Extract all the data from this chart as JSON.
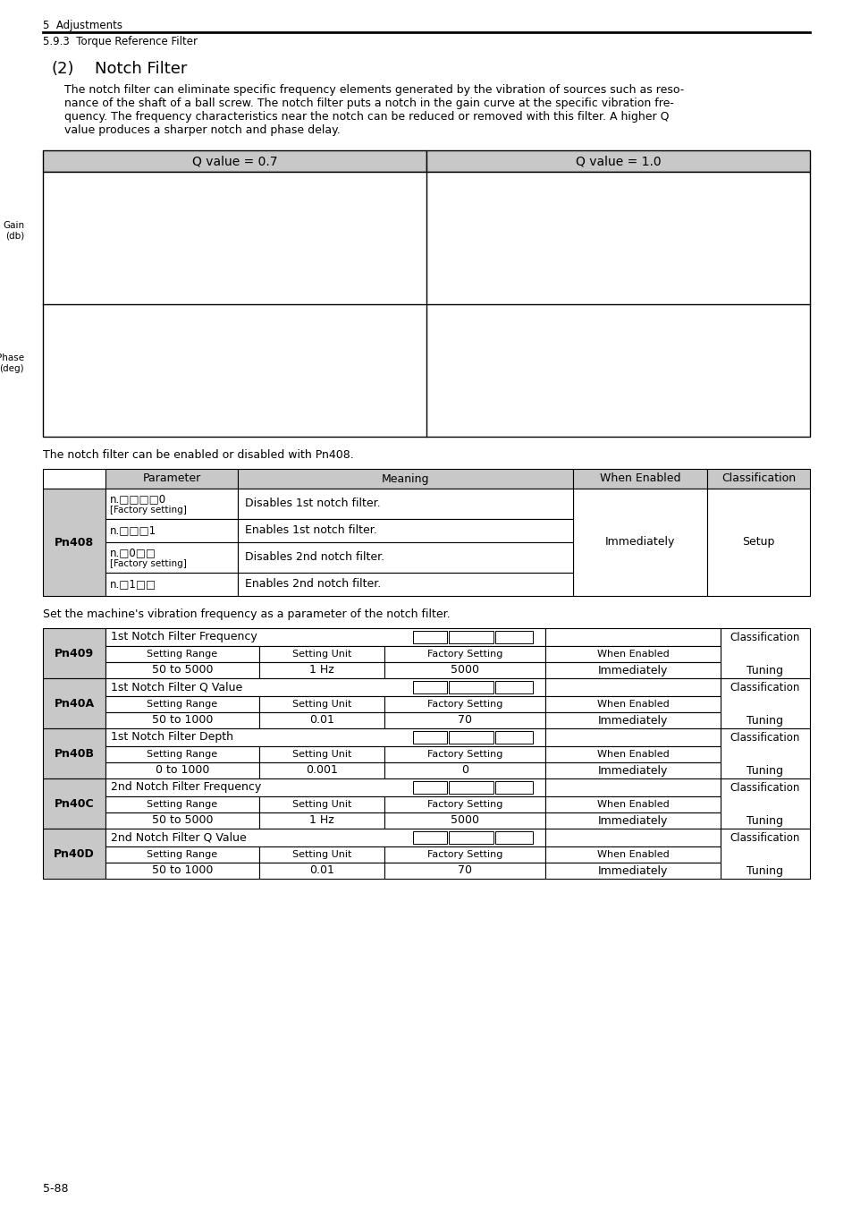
{
  "page_header_left": "5  Adjustments",
  "section_title": "5.9.3  Torque Reference Filter",
  "chapter_heading_num": "(2)",
  "chapter_heading_text": "Notch Filter",
  "body_text": "The notch filter can eliminate specific frequency elements generated by the vibration of sources such as reso-nance of the shaft of a ball screw. The notch filter puts a notch in the gain curve at the specific vibration fre-quency. The frequency characteristics near the notch can be reduced or removed with this filter. A higher Q value produces a sharper notch and phase delay.",
  "plot_table_header": [
    "Q value = 0.7",
    "Q value = 1.0"
  ],
  "notch_text1": "The notch filter can be enabled or disabled with Pn408.",
  "notch_text2": "Set the machine's vibration frequency as a parameter of the notch filter.",
  "pn408_label": "Pn408",
  "table2_data": [
    {
      "pn_label": "Pn409",
      "filter_name": "1st Notch Filter Frequency",
      "setting_range": "50 to 5000",
      "setting_unit": "1 Hz",
      "factory_setting": "5000",
      "when_enabled": "Immediately",
      "classification": "Tuning"
    },
    {
      "pn_label": "Pn40A",
      "filter_name": "1st Notch Filter Q Value",
      "setting_range": "50 to 1000",
      "setting_unit": "0.01",
      "factory_setting": "70",
      "when_enabled": "Immediately",
      "classification": "Tuning"
    },
    {
      "pn_label": "Pn40B",
      "filter_name": "1st Notch Filter Depth",
      "setting_range": "0 to 1000",
      "setting_unit": "0.001",
      "factory_setting": "0",
      "when_enabled": "Immediately",
      "classification": "Tuning"
    },
    {
      "pn_label": "Pn40C",
      "filter_name": "2nd Notch Filter Frequency",
      "setting_range": "50 to 5000",
      "setting_unit": "1 Hz",
      "factory_setting": "5000",
      "when_enabled": "Immediately",
      "classification": "Tuning"
    },
    {
      "pn_label": "Pn40D",
      "filter_name": "2nd Notch Filter Q Value",
      "setting_range": "50 to 1000",
      "setting_unit": "0.01",
      "factory_setting": "70",
      "when_enabled": "Immediately",
      "classification": "Tuning"
    }
  ],
  "page_number": "5-88",
  "page_bg": "#ffffff",
  "table_header_bg": "#c8c8c8"
}
